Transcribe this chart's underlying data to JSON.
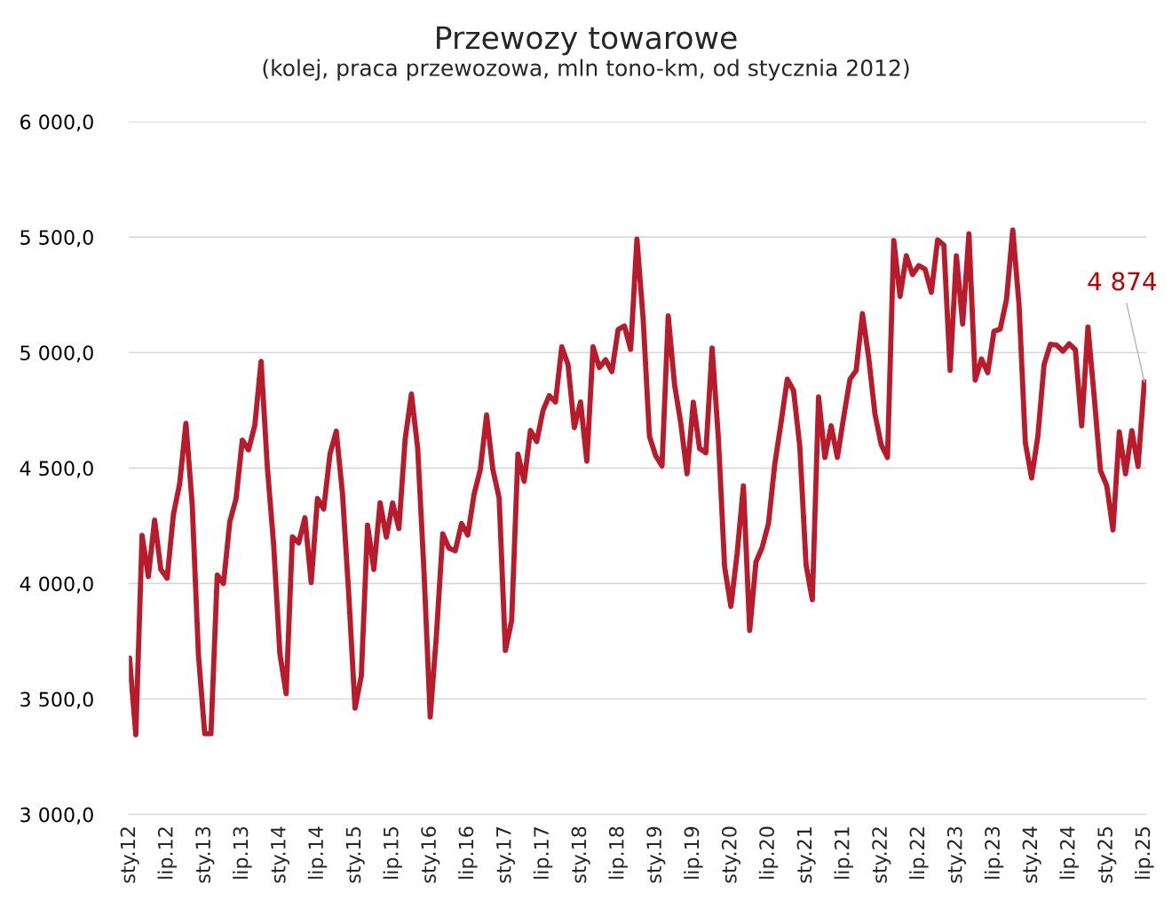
{
  "chart_data": {
    "type": "line",
    "title": "Przewozy towarowe",
    "subtitle": "(kolej, praca przewozowa, mln tono-km, od stycznia 2012)",
    "categories": [
      "sty.12",
      null,
      null,
      null,
      null,
      null,
      "lip.12",
      null,
      null,
      null,
      null,
      null,
      "sty.13",
      null,
      null,
      null,
      null,
      null,
      "lip.13",
      null,
      null,
      null,
      null,
      null,
      "sty.14",
      null,
      null,
      null,
      null,
      null,
      "lip.14",
      null,
      null,
      null,
      null,
      null,
      "sty.15",
      null,
      null,
      null,
      null,
      null,
      "lip.15",
      null,
      null,
      null,
      null,
      null,
      "sty.16",
      null,
      null,
      null,
      null,
      null,
      "lip.16",
      null,
      null,
      null,
      null,
      null,
      "sty.17",
      null,
      null,
      null,
      null,
      null,
      "lip.17",
      null,
      null,
      null,
      null,
      null,
      "sty.18",
      null,
      null,
      null,
      null,
      null,
      "lip.18",
      null,
      null,
      null,
      null,
      null,
      "sty.19",
      null,
      null,
      null,
      null,
      null,
      "lip.19",
      null,
      null,
      null,
      null,
      null,
      "sty.20",
      null,
      null,
      null,
      null,
      null,
      "lip.20",
      null,
      null,
      null,
      null,
      null,
      "sty.21",
      null,
      null,
      null,
      null,
      null,
      "lip.21",
      null,
      null,
      null,
      null,
      null,
      "sty.22",
      null,
      null,
      null,
      null,
      null,
      "lip.22",
      null,
      null,
      null,
      null,
      null,
      "sty.23",
      null,
      null,
      null,
      null,
      null,
      "lip.23",
      null,
      null,
      null,
      null,
      null,
      "sty.24",
      null,
      null,
      null,
      null,
      null,
      "lip.24",
      null,
      null,
      null,
      null,
      null,
      "sty.25",
      null,
      null,
      null,
      null,
      null,
      "lip.25"
    ],
    "series": [
      {
        "color": "#b81c2c",
        "values": [
          3677,
          3345,
          4209,
          4030,
          4275,
          4061,
          4023,
          4298,
          4432,
          4694,
          4344,
          3691,
          3350,
          3350,
          4037,
          4000,
          4267,
          4367,
          4621,
          4579,
          4686,
          4962,
          4503,
          4171,
          3696,
          3523,
          4202,
          4176,
          4285,
          4004,
          4368,
          4323,
          4561,
          4660,
          4388,
          3950,
          3460,
          3600,
          4253,
          4061,
          4350,
          4201,
          4349,
          4238,
          4626,
          4821,
          4585,
          4057,
          3422,
          3780,
          4215,
          4153,
          4142,
          4260,
          4210,
          4386,
          4494,
          4730,
          4494,
          4371,
          3710,
          3840,
          4560,
          4443,
          4663,
          4615,
          4749,
          4814,
          4786,
          5025,
          4948,
          4675,
          4786,
          4530,
          5025,
          4935,
          4969,
          4918,
          5100,
          5115,
          5014,
          5491,
          5143,
          4637,
          4553,
          4509,
          5159,
          4862,
          4695,
          4475,
          4785,
          4585,
          4566,
          5020,
          4630,
          4072,
          3901,
          4131,
          4423,
          3797,
          4093,
          4157,
          4260,
          4516,
          4695,
          4885,
          4836,
          4593,
          4081,
          3930,
          4808,
          4546,
          4683,
          4546,
          4720,
          4884,
          4923,
          5169,
          4977,
          4734,
          4601,
          4546,
          5486,
          5243,
          5419,
          5338,
          5377,
          5361,
          5261,
          5488,
          5465,
          4923,
          5419,
          5124,
          5514,
          4881,
          4972,
          4913,
          5092,
          5102,
          5230,
          5531,
          5207,
          4611,
          4457,
          4637,
          4949,
          5036,
          5032,
          5006,
          5038,
          5012,
          4683,
          5111,
          4808,
          4488,
          4424,
          4232,
          4656,
          4475,
          4662,
          4507,
          4874
        ]
      }
    ],
    "ylim": [
      3000,
      6000
    ],
    "yticks": [
      {
        "value": 3000,
        "label": "3 000,0"
      },
      {
        "value": 3500,
        "label": "3 500,0"
      },
      {
        "value": 4000,
        "label": "4 000,0"
      },
      {
        "value": 4500,
        "label": "4 500,0"
      },
      {
        "value": 5000,
        "label": "5 000,0"
      },
      {
        "value": 5500,
        "label": "5 500,0"
      },
      {
        "value": 6000,
        "label": "6 000,0"
      }
    ],
    "grid": "y",
    "marker": "none",
    "line_style": "solid",
    "annotations": [
      {
        "text": "4 874",
        "x": "lip.25",
        "y": 4874
      }
    ]
  }
}
